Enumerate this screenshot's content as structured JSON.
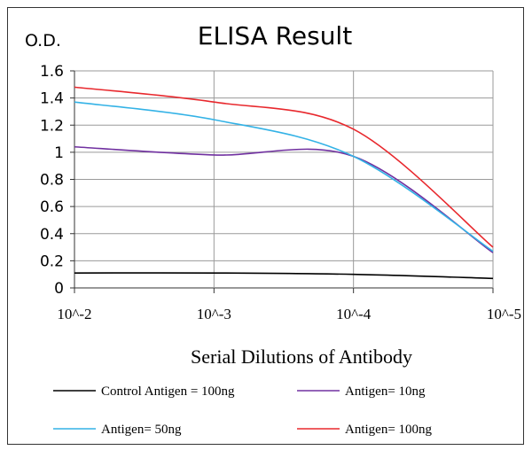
{
  "chart_data": {
    "type": "line",
    "title": "ELISA Result",
    "ylabel": "O.D.",
    "xlabel": "Serial Dilutions  of Antibody",
    "categories": [
      "10^-2",
      "10^-3",
      "10^-4",
      "10^-5"
    ],
    "ylim": [
      0,
      1.6
    ],
    "yticks": [
      0,
      0.2,
      0.4,
      0.6,
      0.8,
      1,
      1.2,
      1.4,
      1.6
    ],
    "ytick_labels": [
      "0",
      "0.2",
      "0.4",
      "0.6",
      "0.8",
      "1",
      "1.2",
      "1.4",
      "1.6"
    ],
    "grid": true,
    "legend_position": "bottom",
    "series": [
      {
        "name": "Control Antigen = 100ng",
        "color": "#000000",
        "values": [
          0.11,
          0.11,
          0.1,
          0.07
        ]
      },
      {
        "name": "Antigen= 10ng",
        "color": "#7030a0",
        "values": [
          1.04,
          0.98,
          0.97,
          0.26
        ]
      },
      {
        "name": "Antigen= 50ng",
        "color": "#33b2e6",
        "values": [
          1.37,
          1.24,
          0.97,
          0.27
        ]
      },
      {
        "name": "Antigen= 100ng",
        "color": "#e8282d",
        "values": [
          1.48,
          1.37,
          1.17,
          0.3
        ]
      }
    ]
  }
}
